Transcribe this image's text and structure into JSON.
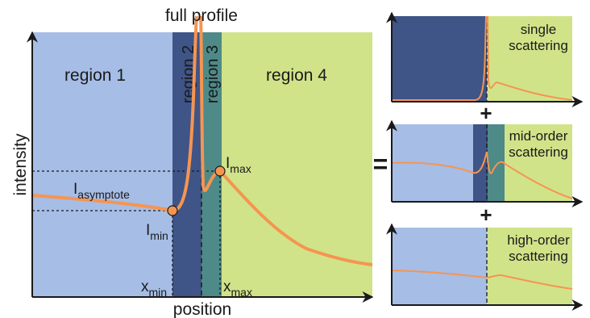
{
  "colors": {
    "region1": "#a6bde6",
    "region2": "#3f5487",
    "region3": "#4e8a88",
    "region4": "#d1e389",
    "curve": "#f59552",
    "axis": "#1a1a1a"
  },
  "main": {
    "title": "full profile",
    "ylabel": "intensity",
    "xlabel": "position",
    "region1": "region 1",
    "region2": "region 2",
    "region3": "region 3",
    "region4": "region 4",
    "asymptote_main": "I",
    "asymptote_sub": "asymptote",
    "imax_main": "I",
    "imax_sub": "max",
    "imin_main": "I",
    "imin_sub": "min",
    "xmin_main": "x",
    "xmin_sub": "min",
    "xmax_main": "x",
    "xmax_sub": "max"
  },
  "operators": {
    "equals": "=",
    "plus1": "+",
    "plus2": "+"
  },
  "panels": {
    "single": {
      "line1": "single",
      "line2": "scattering"
    },
    "mid": {
      "line1": "mid-order",
      "line2": "scattering"
    },
    "high": {
      "line1": "high-order",
      "line2": "scattering"
    }
  }
}
